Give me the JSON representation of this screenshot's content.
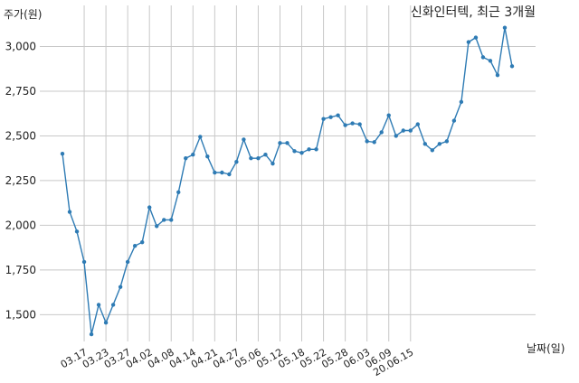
{
  "chart_data": {
    "type": "line",
    "title": "신화인터텍, 최근 3개월",
    "ylabel": "주가(원)",
    "xlabel": "날짜(일)",
    "ylim": [
      1350,
      3230
    ],
    "yticks": [
      1500,
      1750,
      2000,
      2250,
      2500,
      2750,
      3000
    ],
    "ytick_labels": [
      "1,500",
      "1,750",
      "2,000",
      "2,250",
      "2,500",
      "2,750",
      "3,000"
    ],
    "xtick_labels": [
      "03.17",
      "03.23",
      "03.27",
      "04.02",
      "04.08",
      "04.14",
      "04.21",
      "04.27",
      "05.06",
      "05.12",
      "05.18",
      "05.22",
      "05.28",
      "06.03",
      "06.09",
      "20.06.15"
    ],
    "xtick_positions": [
      3,
      6,
      9,
      12,
      15,
      18,
      21,
      24,
      27,
      30,
      33,
      36,
      39,
      42,
      45,
      48
    ],
    "grid": true,
    "color": "#2e7bb4",
    "values": [
      2400,
      2075,
      1965,
      1795,
      1390,
      1555,
      1455,
      1555,
      1655,
      1795,
      1885,
      1905,
      2100,
      1995,
      2030,
      2030,
      2185,
      2375,
      2395,
      2495,
      2385,
      2295,
      2295,
      2285,
      2355,
      2480,
      2375,
      2375,
      2395,
      2345,
      2460,
      2460,
      2415,
      2405,
      2425,
      2425,
      2595,
      2605,
      2615,
      2560,
      2570,
      2565,
      2470,
      2465,
      2520,
      2615,
      2500,
      2530,
      2530,
      2565,
      2455,
      2420,
      2455,
      2470,
      2585,
      2690,
      3025,
      3050,
      2940,
      2920,
      2840,
      3105,
      2890
    ]
  }
}
